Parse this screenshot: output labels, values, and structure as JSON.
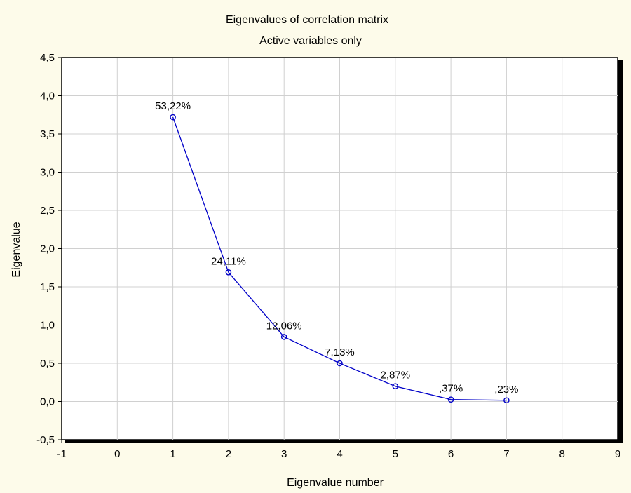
{
  "chart_data": {
    "type": "line",
    "title": "Eigenvalues of correlation matrix",
    "subtitle": "Active variables only",
    "xlabel": "Eigenvalue number",
    "ylabel": "Eigenvalue",
    "xlim": [
      -1,
      9
    ],
    "ylim": [
      -0.5,
      4.5
    ],
    "x_ticks": [
      -1,
      0,
      1,
      2,
      3,
      4,
      5,
      6,
      7,
      8,
      9
    ],
    "x_tick_labels": [
      "-1",
      "0",
      "1",
      "2",
      "3",
      "4",
      "5",
      "6",
      "7",
      "8",
      "9"
    ],
    "y_ticks": [
      -0.5,
      0,
      0.5,
      1,
      1.5,
      2,
      2.5,
      3,
      3.5,
      4,
      4.5
    ],
    "y_tick_labels": [
      "-0,5",
      "0,0",
      "0,5",
      "1,0",
      "1,5",
      "2,0",
      "2,5",
      "3,0",
      "3,5",
      "4,0",
      "4,5"
    ],
    "grid": true,
    "series": [
      {
        "color": "#0000c8",
        "x": [
          1,
          2,
          3,
          4,
          5,
          6,
          7
        ],
        "y": [
          3.72,
          1.69,
          0.845,
          0.5,
          0.2,
          0.026,
          0.016
        ],
        "labels": [
          "53,22%",
          "24,11%",
          "12,06%",
          "7,13%",
          "2,87%",
          ",37%",
          ",23%"
        ]
      }
    ]
  }
}
